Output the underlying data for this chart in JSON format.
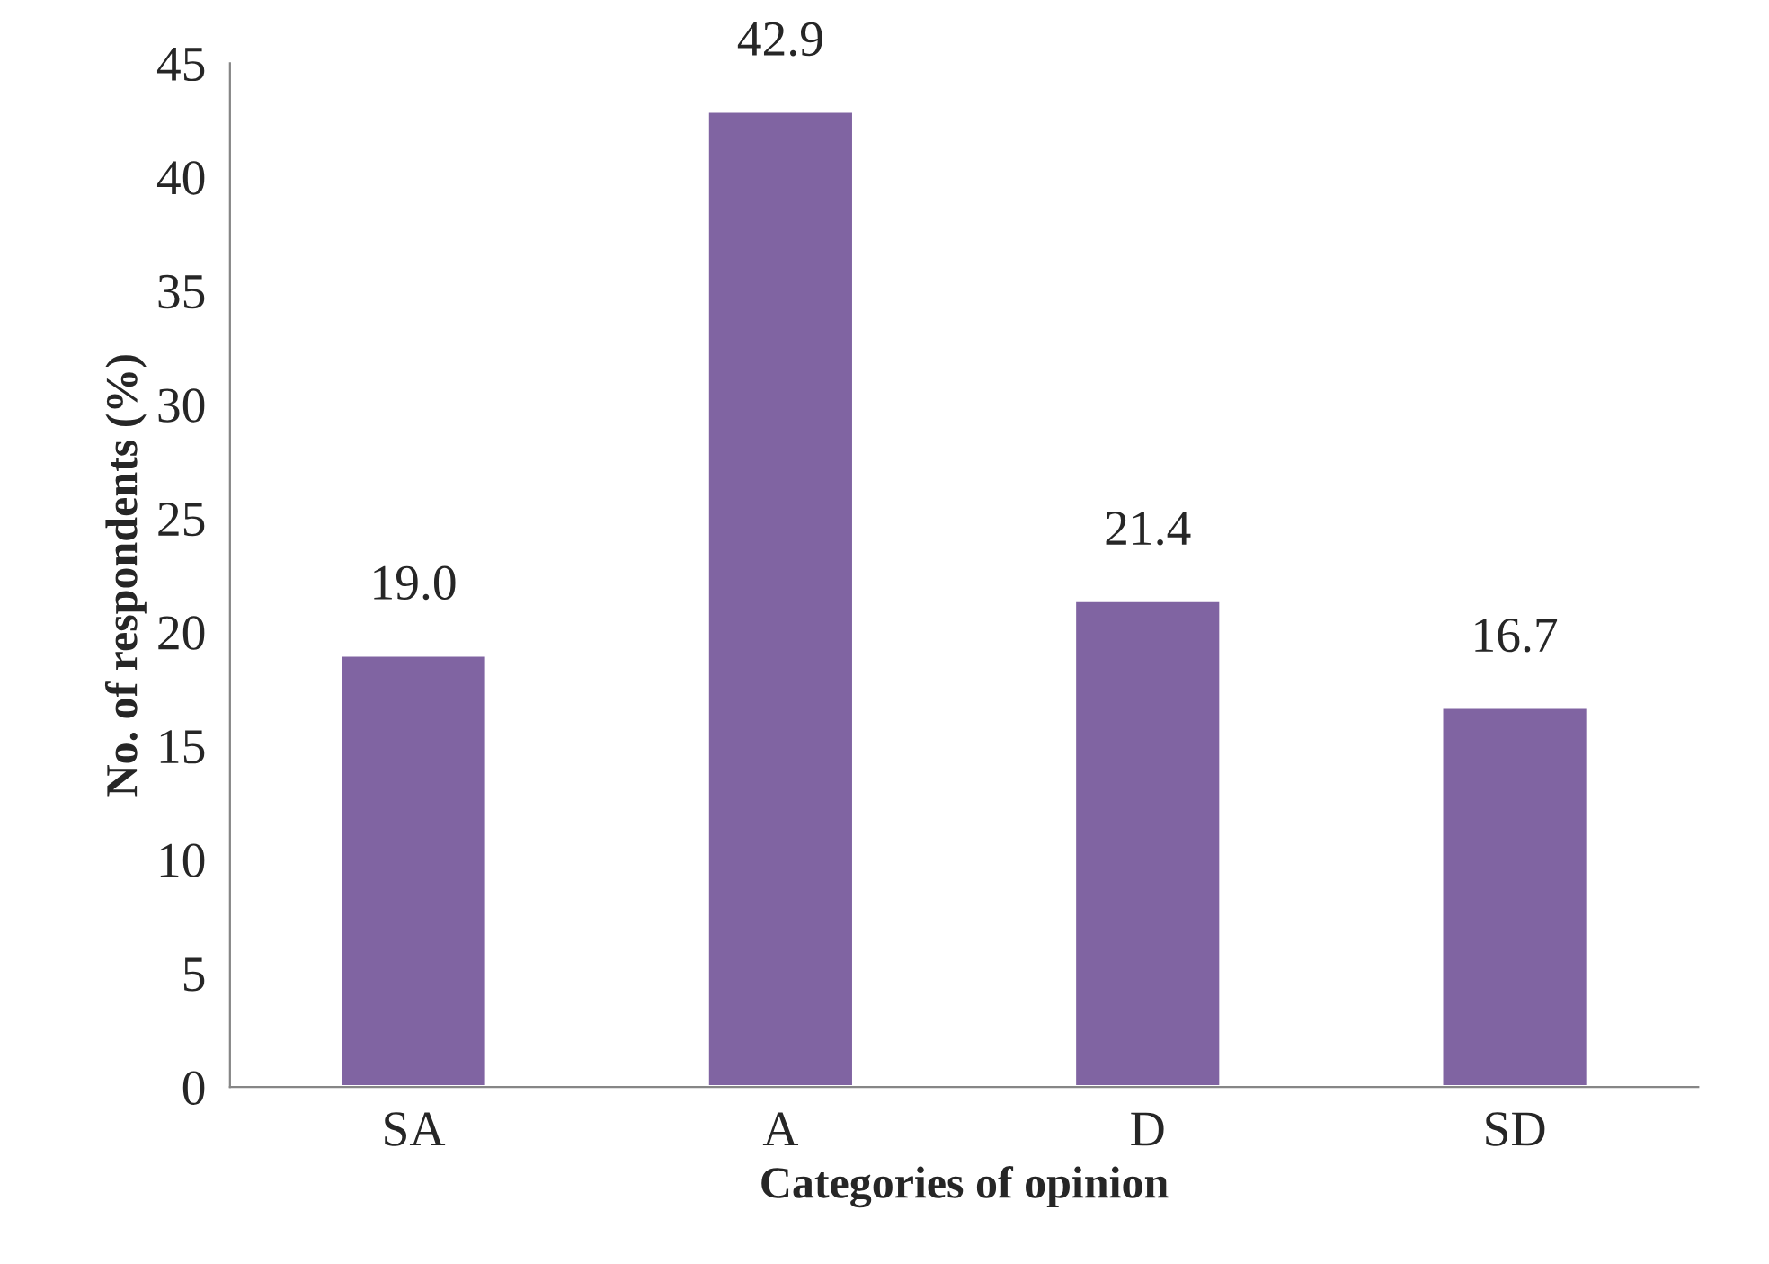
{
  "chart_data": {
    "type": "bar",
    "xlabel": "Categories of opinion",
    "ylabel": "No. of respondents (%)",
    "categories": [
      "SA",
      "A",
      "D",
      "SD"
    ],
    "values": [
      19.0,
      42.9,
      21.4,
      16.7
    ],
    "color": "#8064a2",
    "ylim": [
      0,
      45
    ],
    "yticks": [
      0,
      5,
      10,
      15,
      20,
      25,
      30,
      35,
      40,
      45
    ],
    "value_labels": [
      "19.0",
      "42.9",
      "21.4",
      "16.7"
    ],
    "grid": false,
    "legend": false
  }
}
